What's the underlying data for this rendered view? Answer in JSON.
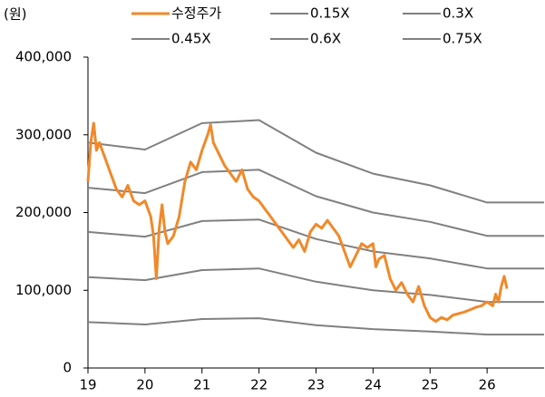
{
  "chart_data": {
    "type": "line",
    "y_label": "(원)",
    "xlim": [
      19,
      27
    ],
    "xticks": [
      19,
      20,
      21,
      22,
      23,
      24,
      25,
      26
    ],
    "ylim": [
      0,
      400000
    ],
    "yticks": [
      0,
      {
        "value": 100000,
        "label": "100,000"
      },
      {
        "value": 200000,
        "label": "200,000"
      },
      {
        "value": 300000,
        "label": "300,000"
      },
      {
        "value": 400000,
        "label": "400,000"
      }
    ],
    "grid": false,
    "series": [
      {
        "name": "수정주가",
        "color": "#f0892a",
        "x": [
          19.0,
          19.05,
          19.1,
          19.15,
          19.2,
          19.3,
          19.4,
          19.5,
          19.6,
          19.7,
          19.8,
          19.9,
          20.0,
          20.1,
          20.15,
          20.2,
          20.25,
          20.3,
          20.35,
          20.4,
          20.5,
          20.6,
          20.7,
          20.8,
          20.9,
          21.0,
          21.1,
          21.15,
          21.2,
          21.3,
          21.4,
          21.5,
          21.6,
          21.7,
          21.8,
          21.9,
          22.0,
          22.1,
          22.2,
          22.3,
          22.4,
          22.5,
          22.6,
          22.7,
          22.8,
          22.9,
          23.0,
          23.1,
          23.2,
          23.3,
          23.4,
          23.5,
          23.6,
          23.7,
          23.8,
          23.9,
          24.0,
          24.05,
          24.1,
          24.2,
          24.3,
          24.4,
          24.5,
          24.6,
          24.7,
          24.8,
          24.9,
          25.0,
          25.1,
          25.2,
          25.3,
          25.4,
          25.5,
          25.6,
          25.7,
          25.8,
          25.9,
          26.0,
          26.1,
          26.15,
          26.2,
          26.25,
          26.3,
          26.35
        ],
        "values": [
          240000,
          290000,
          315000,
          280000,
          290000,
          270000,
          250000,
          230000,
          220000,
          235000,
          215000,
          210000,
          215000,
          195000,
          170000,
          115000,
          180000,
          210000,
          175000,
          160000,
          170000,
          195000,
          240000,
          265000,
          255000,
          280000,
          300000,
          313000,
          290000,
          275000,
          260000,
          250000,
          240000,
          255000,
          230000,
          220000,
          215000,
          205000,
          195000,
          185000,
          175000,
          165000,
          155000,
          165000,
          150000,
          175000,
          185000,
          180000,
          190000,
          180000,
          170000,
          150000,
          130000,
          145000,
          160000,
          155000,
          160000,
          130000,
          140000,
          145000,
          115000,
          100000,
          110000,
          95000,
          85000,
          105000,
          80000,
          65000,
          60000,
          65000,
          62000,
          68000,
          70000,
          72000,
          75000,
          78000,
          80000,
          85000,
          80000,
          95000,
          85000,
          105000,
          118000,
          102000
        ]
      },
      {
        "name": "0.15X",
        "color": "#808080",
        "x": [
          19,
          20,
          21,
          22,
          23,
          24,
          25,
          26,
          27
        ],
        "values": [
          59000,
          56000,
          63000,
          64000,
          55000,
          50000,
          47000,
          43000,
          43000
        ]
      },
      {
        "name": "0.3X",
        "color": "#808080",
        "x": [
          19,
          20,
          21,
          22,
          23,
          24,
          25,
          26,
          27
        ],
        "values": [
          117000,
          113000,
          126000,
          128000,
          111000,
          100000,
          94000,
          85000,
          85000
        ]
      },
      {
        "name": "0.45X",
        "color": "#808080",
        "x": [
          19,
          20,
          21,
          22,
          23,
          24,
          25,
          26,
          27
        ],
        "values": [
          175000,
          169000,
          189000,
          191000,
          166000,
          150000,
          141000,
          128000,
          128000
        ]
      },
      {
        "name": "0.6X",
        "color": "#808080",
        "x": [
          19,
          20,
          21,
          22,
          23,
          24,
          25,
          26,
          27
        ],
        "values": [
          232000,
          225000,
          252000,
          255000,
          221000,
          200000,
          188000,
          170000,
          170000
        ]
      },
      {
        "name": "0.75X",
        "color": "#808080",
        "x": [
          19,
          20,
          21,
          22,
          23,
          24,
          25,
          26,
          27
        ],
        "values": [
          290000,
          281000,
          315000,
          319000,
          277000,
          250000,
          235000,
          213000,
          213000
        ]
      }
    ]
  }
}
